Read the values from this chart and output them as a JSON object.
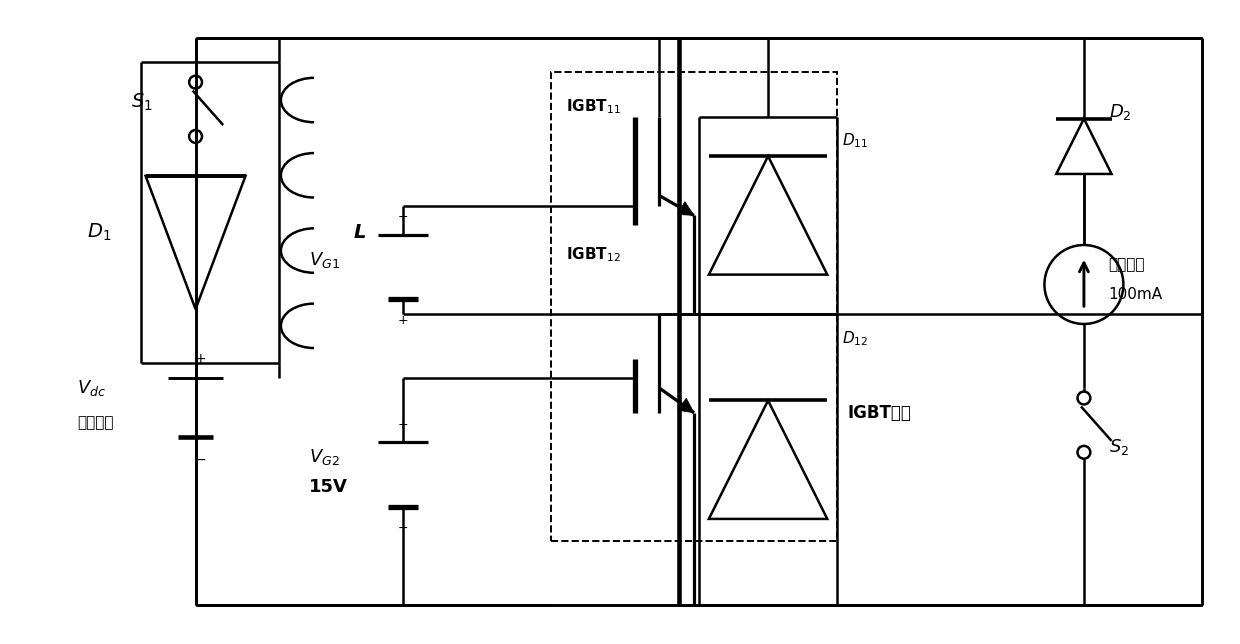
{
  "bg_color": "#ffffff",
  "lc": "#000000",
  "lw": 1.8,
  "fig_w": 12.4,
  "fig_h": 6.44,
  "dpi": 100,
  "labels": {
    "S1": "$S_1$",
    "D1": "$D_1$",
    "L": "L",
    "Vdc": "$V_{dc}$",
    "Vdc2": "程控电源",
    "VG1": "$V_{G1}$",
    "VG2": "$V_{G2}$",
    "VG2v": "15V",
    "IGBT11": "IGBT$_{11}$",
    "IGBT12": "IGBT$_{12}$",
    "D11": "$D_{11}$",
    "D12": "$D_{12}$",
    "D2": "$D_2$",
    "CS": "恒流电源",
    "CS2": "100mA",
    "S2": "$S_2$",
    "IGBT_module": "IGBT模块"
  }
}
